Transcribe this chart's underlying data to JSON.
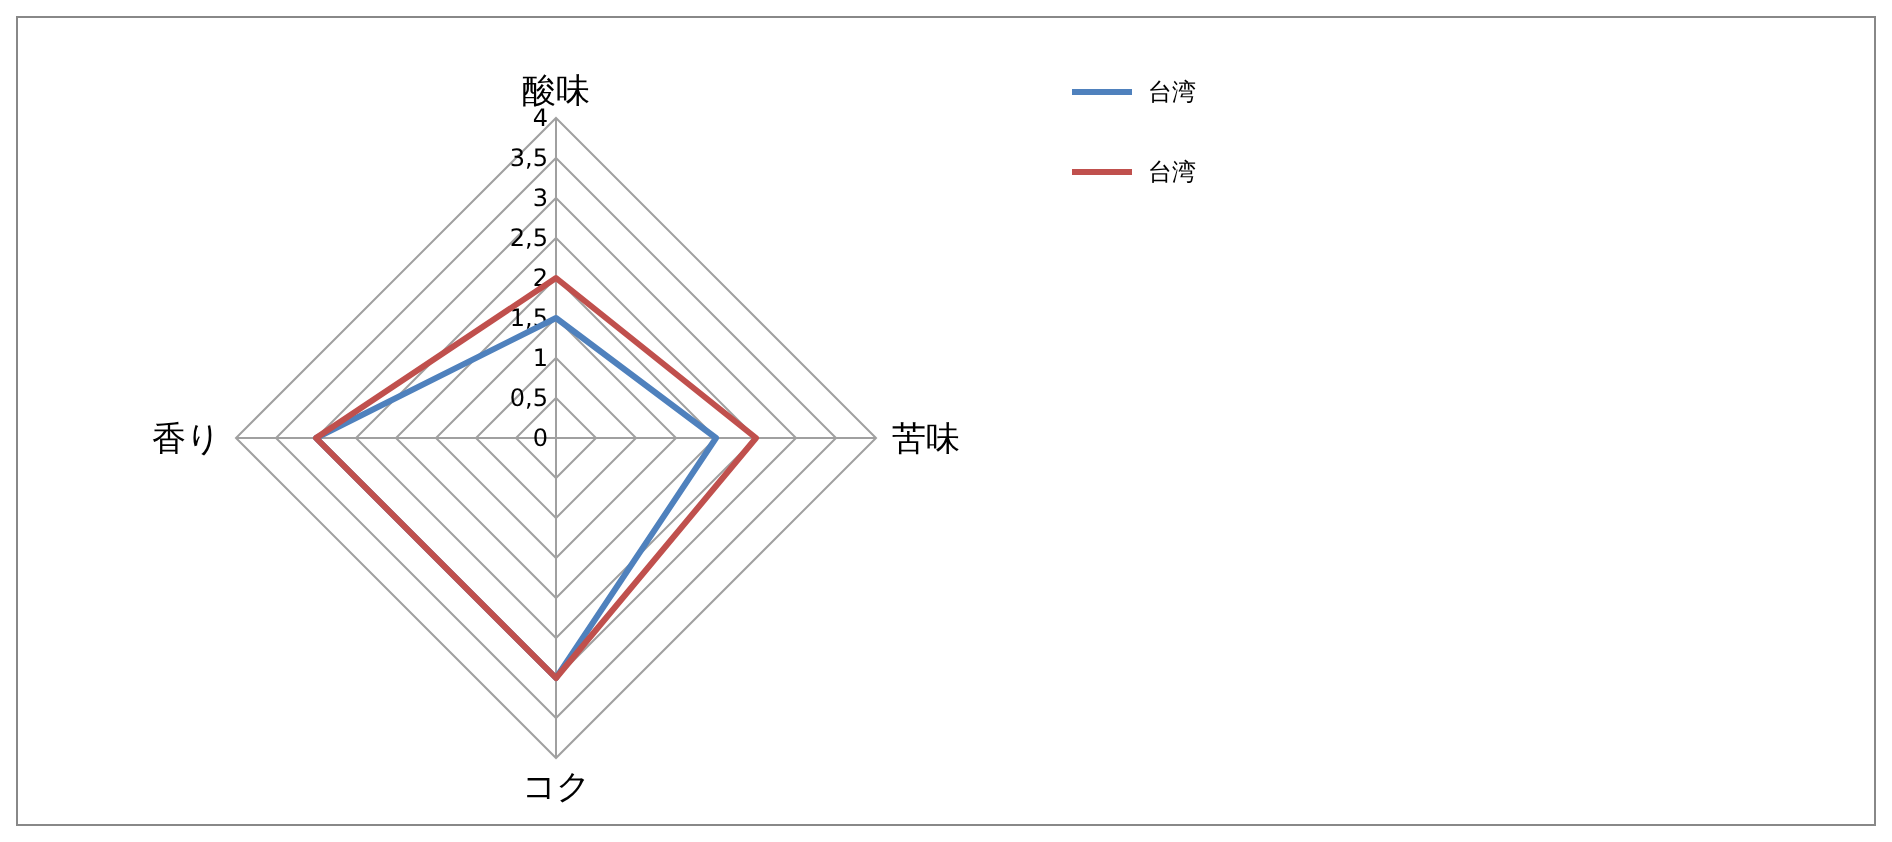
{
  "chart_data": {
    "type": "radar",
    "categories": [
      "酸味",
      "苦味",
      "コク",
      "香り"
    ],
    "series": [
      {
        "name": "台湾",
        "color": "#4f81bd",
        "values": [
          1.5,
          2,
          3,
          3
        ]
      },
      {
        "name": "台湾",
        "color": "#c0504d",
        "values": [
          2,
          2.5,
          3,
          3
        ]
      }
    ],
    "ylim": [
      0,
      4
    ],
    "yticks": [
      0,
      {
        "value": 0.5,
        "label": "0,5"
      },
      1,
      {
        "value": 1.5,
        "label": "1,5"
      },
      2,
      {
        "value": 2.5,
        "label": "2,5"
      },
      3,
      {
        "value": 3.5,
        "label": "3,5"
      },
      4
    ],
    "grid": true,
    "legend": "top right"
  }
}
